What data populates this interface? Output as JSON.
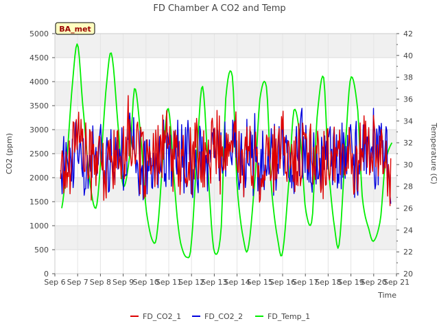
{
  "chart_data": {
    "type": "line",
    "title": "FD Chamber A CO2 and Temp",
    "xlabel": "Time",
    "ylabel": "CO2 (ppm)",
    "y2label": "Temperature (C)",
    "annotation": "BA_met",
    "x_ticks": [
      "Sep 6",
      "Sep 7",
      "Sep 8",
      "Sep 9",
      "Sep 10",
      "Sep 11",
      "Sep 12",
      "Sep 13",
      "Sep 14",
      "Sep 15",
      "Sep 16",
      "Sep 17",
      "Sep 18",
      "Sep 19",
      "Sep 20",
      "Sep 21"
    ],
    "xlim": [
      0,
      15
    ],
    "ylim": [
      0,
      5000
    ],
    "y_ticks": [
      0,
      500,
      1000,
      1500,
      2000,
      2500,
      3000,
      3500,
      4000,
      4500,
      5000
    ],
    "y2lim": [
      20,
      42
    ],
    "y2_ticks": [
      20,
      22,
      24,
      26,
      28,
      30,
      32,
      34,
      36,
      38,
      40,
      42
    ],
    "grid": true,
    "legend": "bottom",
    "series": [
      {
        "name": "FD_CO2_1",
        "color": "#dd0000",
        "axis": "left",
        "noise_amp": 900,
        "x": [
          0.25,
          0.5,
          0.75,
          1.0,
          1.25,
          1.5,
          1.75,
          2.0,
          2.25,
          2.5,
          2.75,
          3.0,
          3.25,
          3.5,
          3.75,
          4.0,
          4.25,
          4.5,
          4.75,
          5.0,
          5.25,
          5.5,
          5.75,
          6.0,
          6.25,
          6.5,
          6.75,
          7.0,
          7.25,
          7.5,
          7.75,
          8.0,
          8.25,
          8.5,
          8.75,
          9.0,
          9.25,
          9.5,
          9.75,
          10.0,
          10.25,
          10.5,
          10.75,
          11.0,
          11.25,
          11.5,
          11.75,
          12.0,
          12.25,
          12.5,
          12.75,
          13.0,
          13.25,
          13.5,
          13.75,
          14.0,
          14.25,
          14.5,
          14.75
        ],
        "y": [
          2400,
          2000,
          2700,
          3100,
          2600,
          2300,
          2500,
          2300,
          2000,
          2600,
          2300,
          2700,
          2900,
          2700,
          2300,
          2400,
          2100,
          2300,
          2800,
          2600,
          2300,
          2500,
          2000,
          2400,
          2600,
          2100,
          2500,
          2800,
          2500,
          2300,
          2700,
          2800,
          2200,
          2500,
          2400,
          2100,
          2500,
          2400,
          2300,
          2700,
          2500,
          2300,
          2400,
          2600,
          2300,
          2500,
          2200,
          2500,
          2700,
          2400,
          2300,
          2500,
          2200,
          2600,
          2800,
          2500,
          2300,
          2500,
          1900
        ]
      },
      {
        "name": "FD_CO2_2",
        "color": "#0000dd",
        "axis": "left",
        "noise_amp": 950,
        "x": [
          0.25,
          0.5,
          0.75,
          1.0,
          1.25,
          1.5,
          1.75,
          2.0,
          2.25,
          2.5,
          2.75,
          3.0,
          3.25,
          3.5,
          3.75,
          4.0,
          4.25,
          4.5,
          4.75,
          5.0,
          5.25,
          5.5,
          5.75,
          6.0,
          6.25,
          6.5,
          6.75,
          7.0,
          7.25,
          7.5,
          7.75,
          8.0,
          8.25,
          8.5,
          8.75,
          9.0,
          9.25,
          9.5,
          9.75,
          10.0,
          10.25,
          10.5,
          10.75,
          11.0,
          11.25,
          11.5,
          11.75,
          12.0,
          12.25,
          12.5,
          12.75,
          13.0,
          13.25,
          13.5,
          13.75,
          14.0,
          14.25,
          14.5,
          14.75
        ],
        "y": [
          2500,
          2200,
          2400,
          2900,
          2400,
          2300,
          2600,
          2500,
          2200,
          2400,
          2500,
          2500,
          2700,
          2600,
          2300,
          2400,
          2300,
          2500,
          2700,
          2400,
          2400,
          2500,
          2200,
          2400,
          2600,
          2300,
          2400,
          2600,
          2400,
          2300,
          2600,
          2700,
          2300,
          2500,
          2500,
          2300,
          2400,
          2500,
          2400,
          2600,
          2400,
          2400,
          2500,
          2600,
          2300,
          2400,
          2300,
          2400,
          2600,
          2400,
          2400,
          2500,
          2300,
          2500,
          2700,
          2600,
          2500,
          2500,
          2300
        ]
      },
      {
        "name": "FD_Temp_1",
        "color": "#00ee00",
        "axis": "right",
        "noise_amp": 0,
        "x": [
          0.3,
          0.5,
          0.8,
          1.0,
          1.2,
          1.5,
          1.8,
          2.0,
          2.3,
          2.5,
          2.8,
          3.0,
          3.3,
          3.5,
          3.8,
          4.0,
          4.3,
          4.5,
          4.8,
          5.0,
          5.3,
          5.5,
          5.8,
          6.0,
          6.3,
          6.5,
          6.8,
          7.0,
          7.3,
          7.5,
          7.8,
          8.0,
          8.3,
          8.5,
          8.8,
          9.0,
          9.3,
          9.5,
          9.8,
          10.0,
          10.3,
          10.5,
          10.8,
          11.0,
          11.3,
          11.5,
          11.8,
          12.0,
          12.3,
          12.5,
          12.8,
          13.0,
          13.3,
          13.5,
          13.8,
          14.0,
          14.3,
          14.5,
          14.8
        ],
        "y": [
          26,
          30,
          38,
          41,
          36,
          29,
          26,
          30,
          38,
          40,
          33,
          28,
          31,
          37,
          32,
          26,
          23,
          24,
          32,
          35,
          27,
          23,
          21.5,
          23,
          33,
          37,
          27,
          22,
          24,
          36,
          38,
          28,
          23,
          22.5,
          29,
          36,
          37,
          28,
          23,
          22,
          29,
          35,
          32,
          26,
          25,
          34,
          38,
          30,
          24,
          23,
          33,
          38,
          35,
          27,
          24,
          23,
          25,
          30,
          32
        ]
      }
    ]
  }
}
